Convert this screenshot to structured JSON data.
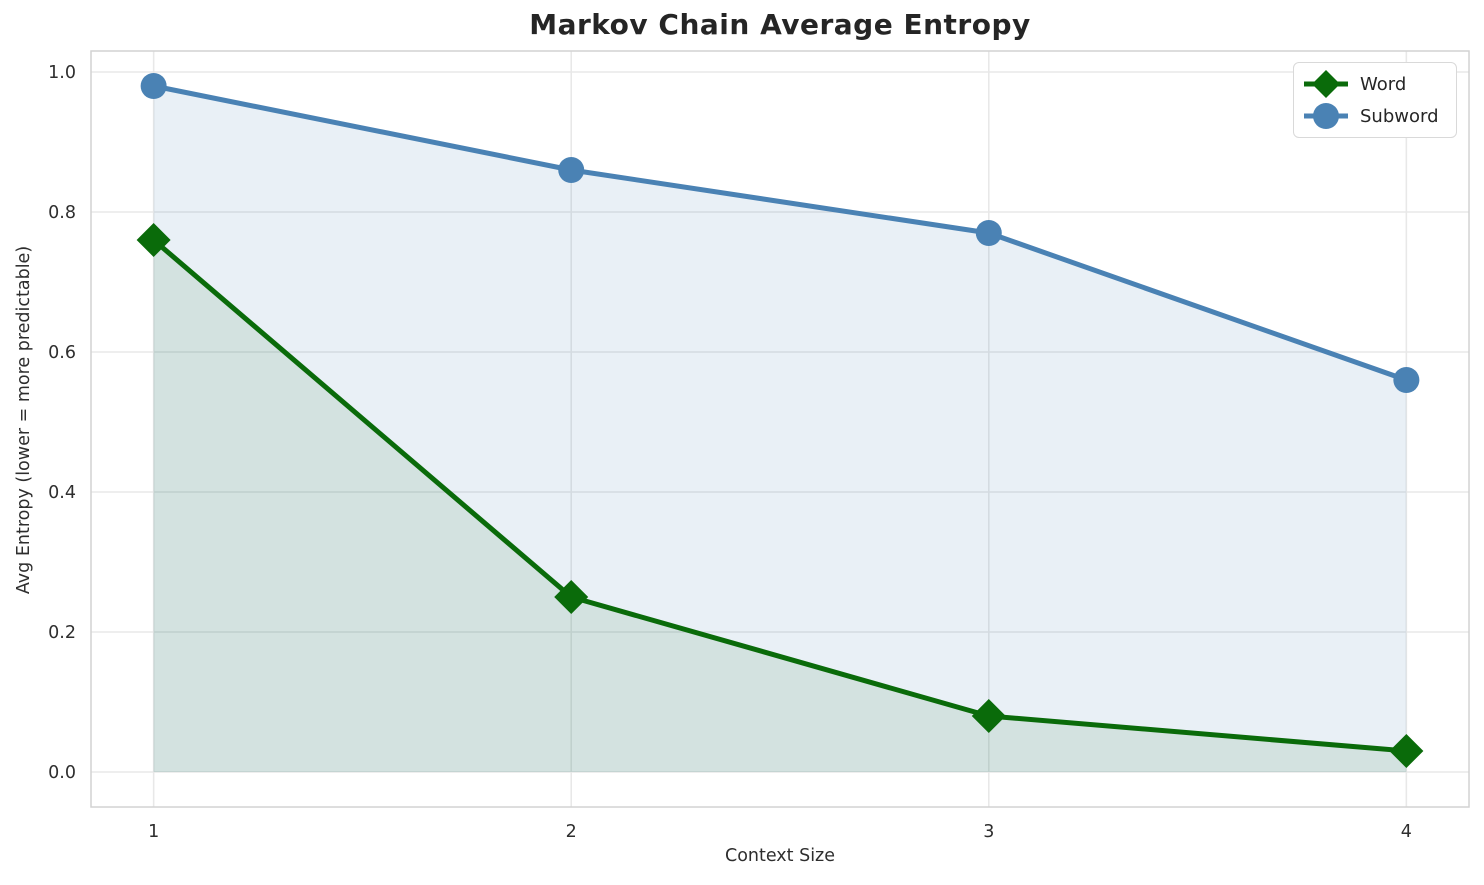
{
  "chart_data": {
    "type": "line",
    "title": "Markov Chain Average Entropy",
    "xlabel": "Context Size",
    "ylabel": "Avg Entropy (lower = more predictable)",
    "x": [
      1,
      2,
      3,
      4
    ],
    "series": [
      {
        "name": "Word",
        "values": [
          0.76,
          0.25,
          0.08,
          0.03
        ],
        "color": "#0a6b0a",
        "marker": "diamond",
        "fill_opacity": 0.1,
        "area_fill": true
      },
      {
        "name": "Subword",
        "values": [
          0.98,
          0.86,
          0.77,
          0.56
        ],
        "color": "#4a82b4",
        "marker": "circle",
        "fill_opacity": 0.12,
        "area_fill": true
      }
    ],
    "xlim": [
      0.85,
      4.15
    ],
    "ylim": [
      -0.05,
      1.03
    ],
    "xticks": {
      "values": [
        1,
        2,
        3,
        4
      ],
      "labels": [
        "1",
        "2",
        "3",
        "4"
      ]
    },
    "yticks": {
      "values": [
        0.0,
        0.2,
        0.4,
        0.6,
        0.8,
        1.0
      ],
      "labels": [
        "0.0",
        "0.2",
        "0.4",
        "0.6",
        "0.8",
        "1.0"
      ]
    },
    "grid": true,
    "legend_position": "upper right"
  },
  "colors": {
    "grid": "#e8e8e8",
    "spine": "#d2d2d2",
    "tick_text": "#2e2e2e",
    "background": "#ffffff"
  }
}
